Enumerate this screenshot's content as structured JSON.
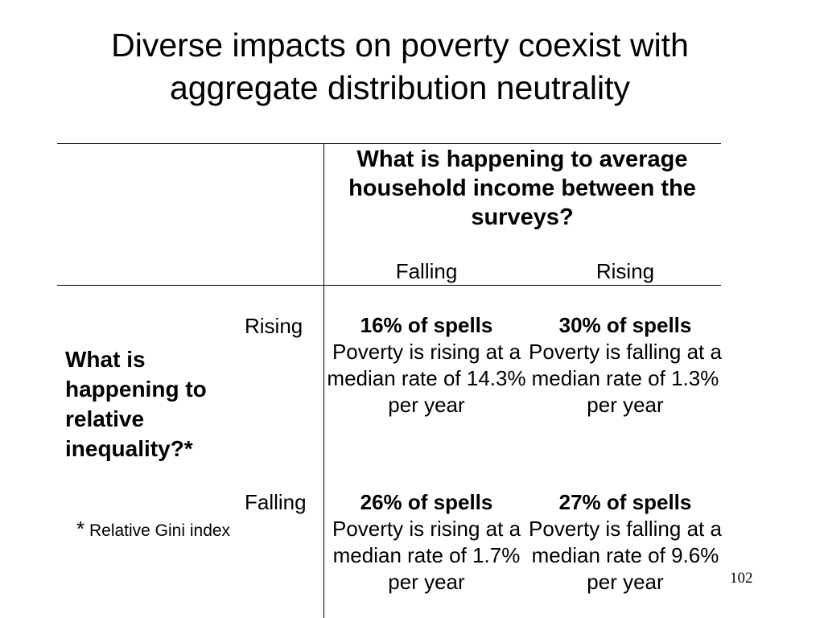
{
  "title": "Diverse impacts on poverty coexist with aggregate distribution neutrality",
  "column_header": {
    "question": "What is happening to average household income between the surveys?",
    "falling_label": "Falling",
    "rising_label": "Rising"
  },
  "row_header": {
    "question": "What is happening to relative inequality?*",
    "rising_label": "Rising",
    "falling_label": "Falling"
  },
  "cells": {
    "rising_falling": {
      "share": "16% of spells",
      "desc": "Poverty is rising at a median rate of 14.3% per year"
    },
    "rising_rising": {
      "share": "30% of spells",
      "desc": "Poverty is falling at a median rate of 1.3% per year"
    },
    "falling_falling": {
      "share": "26% of spells",
      "desc": "Poverty is rising at a median rate of 1.7% per year"
    },
    "falling_rising": {
      "share": "27% of spells",
      "desc": "Poverty is falling at a median rate of 9.6% per year"
    }
  },
  "footnote": {
    "marker": "*",
    "text": "Relative Gini index"
  },
  "page_number": "102"
}
